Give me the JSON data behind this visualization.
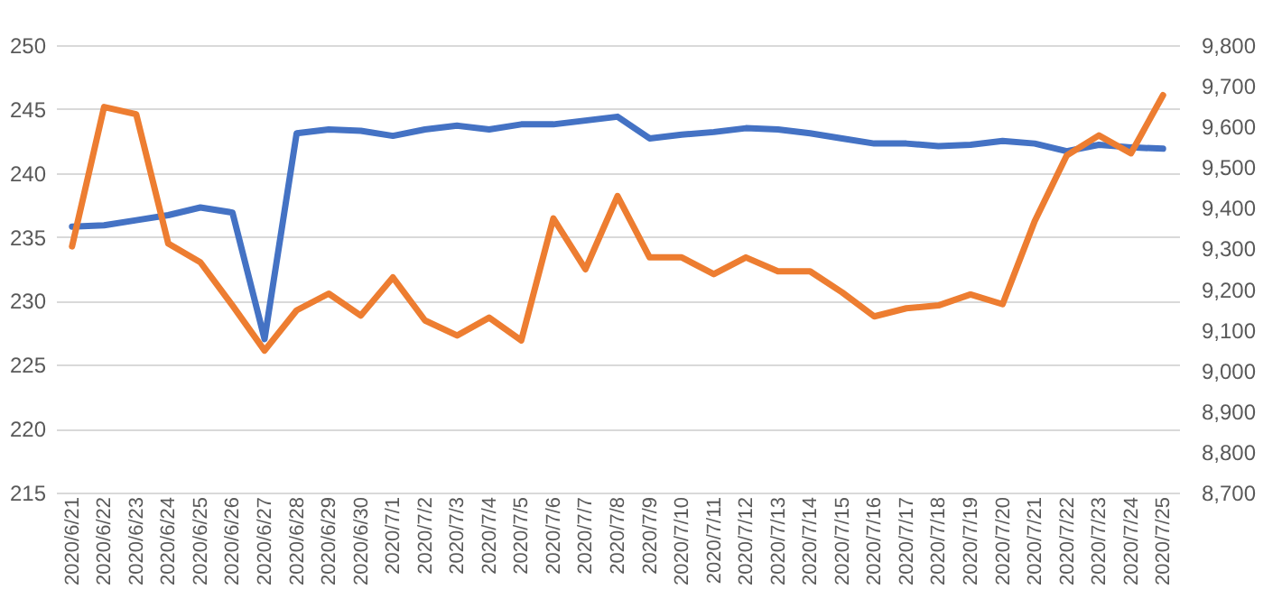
{
  "chart_data": {
    "type": "line",
    "categories": [
      "2020/6/21",
      "2020/6/22",
      "2020/6/23",
      "2020/6/24",
      "2020/6/25",
      "2020/6/26",
      "2020/6/27",
      "2020/6/28",
      "2020/6/29",
      "2020/6/30",
      "2020/7/1",
      "2020/7/2",
      "2020/7/3",
      "2020/7/4",
      "2020/7/5",
      "2020/7/6",
      "2020/7/7",
      "2020/7/8",
      "2020/7/9",
      "2020/7/10",
      "2020/7/11",
      "2020/7/12",
      "2020/7/13",
      "2020/7/14",
      "2020/7/15",
      "2020/7/16",
      "2020/7/17",
      "2020/7/18",
      "2020/7/19",
      "2020/7/20",
      "2020/7/21",
      "2020/7/22",
      "2020/7/23",
      "2020/7/24",
      "2020/7/25"
    ],
    "series": [
      {
        "color": "#4472c4",
        "values": [
          235.8,
          235.9,
          236.3,
          236.7,
          237.3,
          236.9,
          227.0,
          243.1,
          243.4,
          243.3,
          242.9,
          243.4,
          243.7,
          243.4,
          243.8,
          243.8,
          244.1,
          244.4,
          242.7,
          243.0,
          243.2,
          243.5,
          243.4,
          243.1,
          242.7,
          242.3,
          242.3,
          242.1,
          242.2,
          242.5,
          242.3,
          241.7,
          242.2,
          242.0,
          241.9
        ]
      },
      {
        "color": "#ed7d31",
        "axis": "y2",
        "values": [
          9305,
          9648,
          9630,
          9312,
          9266,
          9160,
          9049,
          9148,
          9189,
          9135,
          9229,
          9123,
          9086,
          9130,
          9074,
          9374,
          9249,
          9429,
          9278,
          9278,
          9237,
          9278,
          9244,
          9244,
          9192,
          9133,
          9153,
          9160,
          9187,
          9163,
          9367,
          9529,
          9578,
          9534,
          9677
        ]
      }
    ],
    "ylim": [
      215,
      250
    ],
    "yticks": [
      215,
      220,
      225,
      230,
      235,
      240,
      245,
      250
    ],
    "y2lim": [
      8700,
      9800
    ],
    "y2ticks": [
      {
        "value": 8700,
        "label": "8,700"
      },
      {
        "value": 8800,
        "label": "8,800"
      },
      {
        "value": 8900,
        "label": "8,900"
      },
      {
        "value": 9000,
        "label": "9,000"
      },
      {
        "value": 9100,
        "label": "9,100"
      },
      {
        "value": 9200,
        "label": "9,200"
      },
      {
        "value": 9300,
        "label": "9,300"
      },
      {
        "value": 9400,
        "label": "9,400"
      },
      {
        "value": 9500,
        "label": "9,500"
      },
      {
        "value": 9600,
        "label": "9,600"
      },
      {
        "value": 9700,
        "label": "9,700"
      },
      {
        "value": 9800,
        "label": "9,800"
      }
    ],
    "grid": "y"
  }
}
